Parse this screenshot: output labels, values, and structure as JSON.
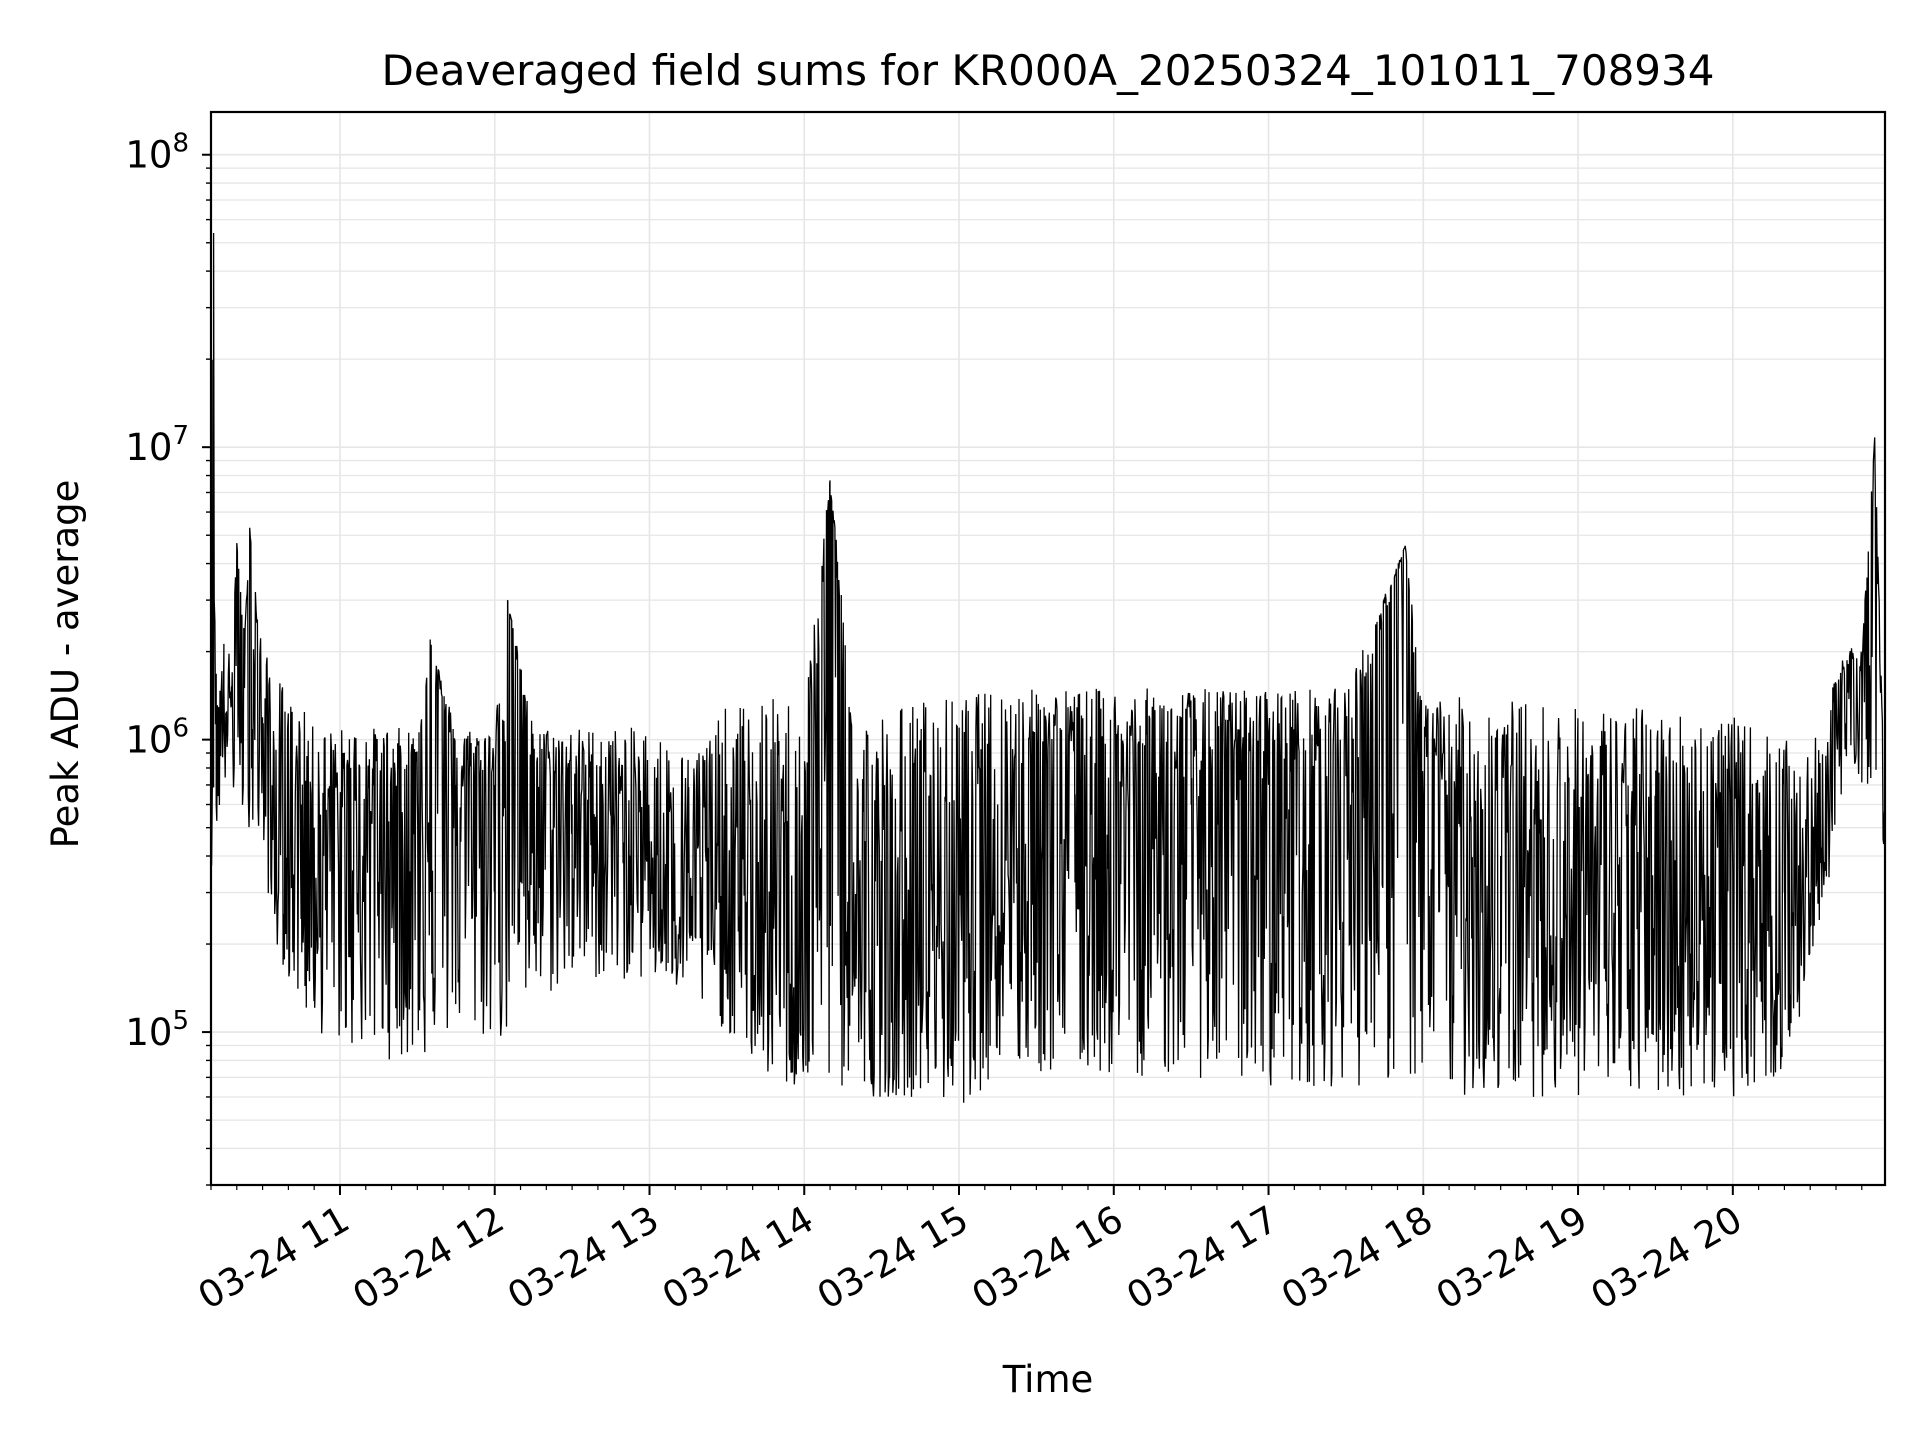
{
  "chart_data": {
    "type": "line",
    "title": "Deaveraged field sums for KR000A_20250324_101011_708934",
    "xlabel": "Time",
    "ylabel": "Peak ADU - average",
    "yscale": "log",
    "ylim": [
      30000,
      140000000
    ],
    "xlim": [
      "2025-03-24 10:10",
      "2025-03-24 20:59"
    ],
    "grid": true,
    "legend": "none",
    "colors": {
      "line": "#000000",
      "grid": "#e6e6e6",
      "axes": "#000000",
      "background": "#ffffff"
    },
    "x_ticks": [
      "03-24 11",
      "03-24 12",
      "03-24 13",
      "03-24 14",
      "03-24 15",
      "03-24 16",
      "03-24 17",
      "03-24 18",
      "03-24 19",
      "03-24 20"
    ],
    "y_ticks": [
      {
        "value": 100000,
        "base": "10",
        "exp": "5"
      },
      {
        "value": 1000000,
        "base": "10",
        "exp": "6"
      },
      {
        "value": 10000000,
        "base": "10",
        "exp": "7"
      },
      {
        "value": 100000000,
        "base": "10",
        "exp": "8"
      }
    ],
    "series": [
      {
        "x": [
          "2025-03-24 10:10",
          "2025-03-24 10:11",
          "2025-03-24 10:12",
          "2025-03-24 10:15",
          "2025-03-24 10:18",
          "2025-03-24 10:20",
          "2025-03-24 10:23",
          "2025-03-24 10:25",
          "2025-03-24 10:30",
          "2025-03-24 10:35",
          "2025-03-24 10:40",
          "2025-03-24 10:45",
          "2025-03-24 10:50",
          "2025-03-24 11:00",
          "2025-03-24 11:10",
          "2025-03-24 11:20",
          "2025-03-24 11:30",
          "2025-03-24 11:35",
          "2025-03-24 11:45",
          "2025-03-24 12:00",
          "2025-03-24 12:05",
          "2025-03-24 12:15",
          "2025-03-24 12:30",
          "2025-03-24 12:45",
          "2025-03-24 13:00",
          "2025-03-24 13:15",
          "2025-03-24 13:30",
          "2025-03-24 13:45",
          "2025-03-24 14:00",
          "2025-03-24 14:10",
          "2025-03-24 14:20",
          "2025-03-24 14:30",
          "2025-03-24 14:45",
          "2025-03-24 15:00",
          "2025-03-24 15:15",
          "2025-03-24 15:30",
          "2025-03-24 15:45",
          "2025-03-24 16:00",
          "2025-03-24 16:30",
          "2025-03-24 17:00",
          "2025-03-24 17:30",
          "2025-03-24 17:53",
          "2025-03-24 18:00",
          "2025-03-24 18:30",
          "2025-03-24 19:00",
          "2025-03-24 19:30",
          "2025-03-24 20:00",
          "2025-03-24 20:20",
          "2025-03-24 20:30",
          "2025-03-24 20:45",
          "2025-03-24 20:50",
          "2025-03-24 20:55",
          "2025-03-24 20:59"
        ],
        "y": [
          400000,
          54000000,
          600000,
          1500000,
          1300000,
          4700000,
          1500000,
          5300000,
          1000000,
          400000,
          500000,
          600000,
          500000,
          500000,
          600000,
          600000,
          650000,
          2200000,
          700000,
          700000,
          3000000,
          700000,
          600000,
          550000,
          450000,
          350000,
          300000,
          250000,
          250000,
          7700000,
          200000,
          120000,
          250000,
          300000,
          600000,
          700000,
          650000,
          600000,
          600000,
          700000,
          750000,
          4600000,
          600000,
          400000,
          300000,
          300000,
          350000,
          300000,
          300000,
          1800000,
          1600000,
          10800000,
          400000
        ],
        "max": [
          1100000,
          54000000,
          2000000,
          2200000,
          1900000,
          4700000,
          2300000,
          5300000,
          2000000,
          1800000,
          1400000,
          1300000,
          1100000,
          1100000,
          1100000,
          1100000,
          1100000,
          2200000,
          1100000,
          1100000,
          3000000,
          1100000,
          1100000,
          1100000,
          1100000,
          900000,
          1300000,
          1400000,
          1400000,
          7700000,
          1300000,
          1300000,
          1400000,
          1400000,
          1500000,
          1500000,
          1500000,
          1500000,
          1500000,
          1500000,
          1500000,
          4600000,
          1400000,
          1400000,
          1300000,
          1300000,
          1200000,
          1000000,
          900000,
          2200000,
          2000000,
          10800000,
          600000
        ],
        "min": [
          370000,
          370000,
          500000,
          700000,
          600000,
          600000,
          500000,
          500000,
          400000,
          200000,
          150000,
          120000,
          100000,
          90000,
          85000,
          80000,
          80000,
          80000,
          100000,
          90000,
          90000,
          120000,
          150000,
          150000,
          150000,
          130000,
          100000,
          70000,
          60000,
          60000,
          60000,
          60000,
          60000,
          55000,
          70000,
          70000,
          70000,
          70000,
          70000,
          65000,
          65000,
          65000,
          60000,
          60000,
          60000,
          60000,
          60000,
          70000,
          150000,
          800000,
          700000,
          700000,
          400000
        ]
      }
    ]
  }
}
